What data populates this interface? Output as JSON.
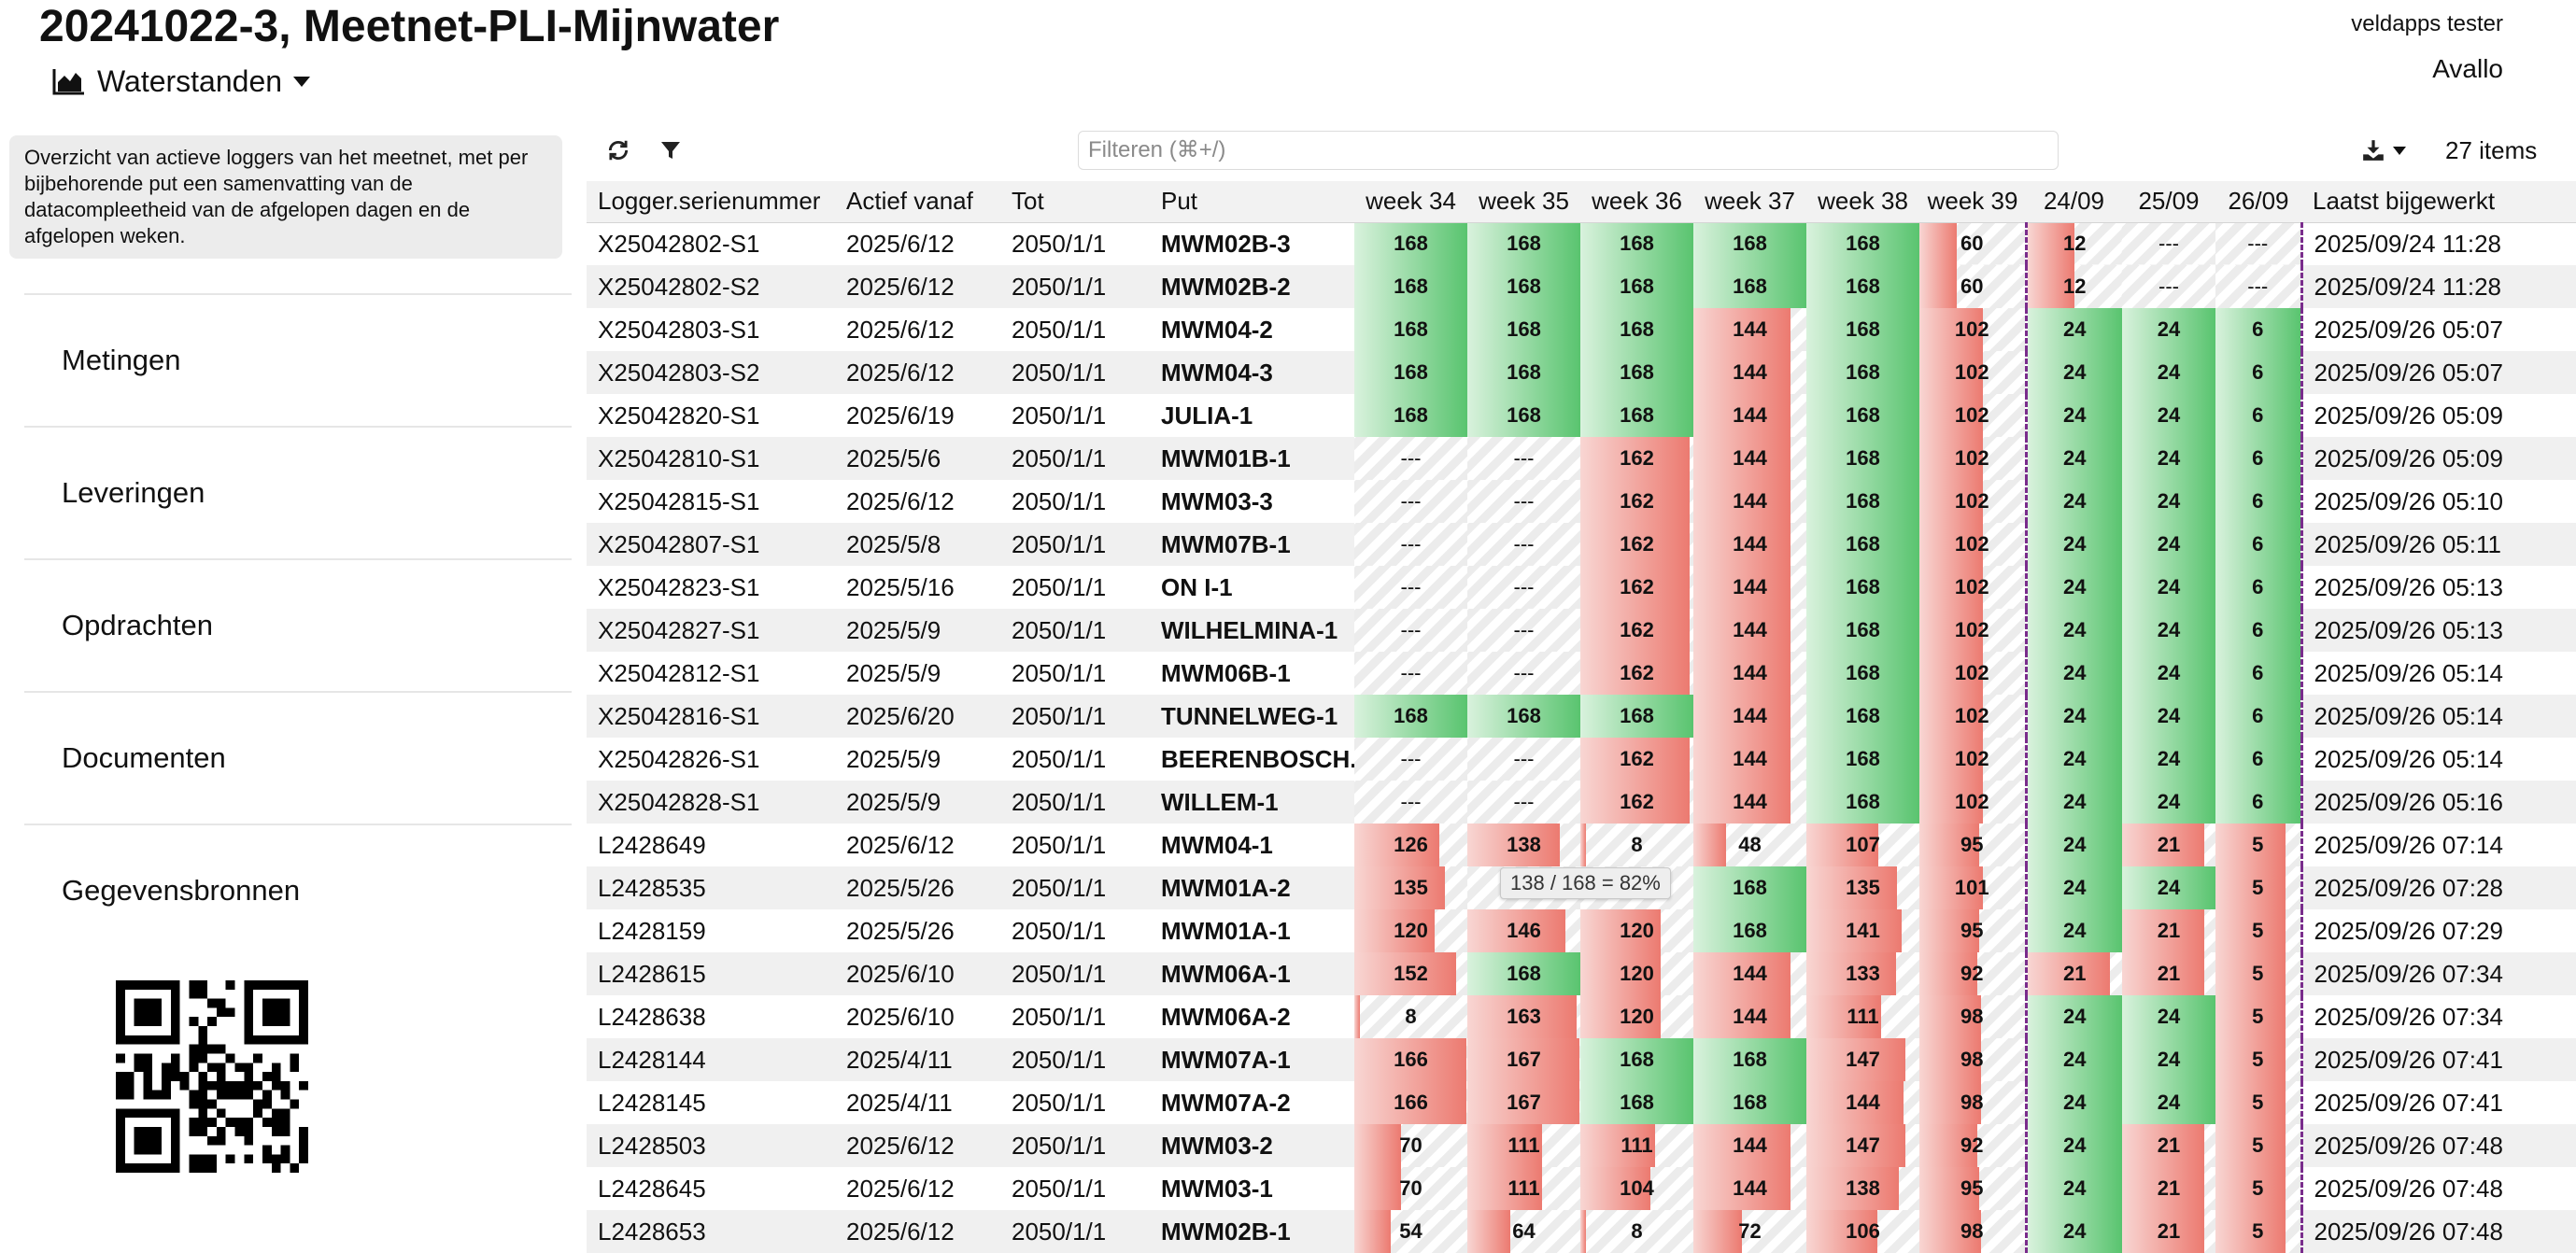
{
  "header": {
    "title": "20241022-3, Meetnet-PLI-Mijnwater",
    "view_selector": "Waterstanden",
    "user": "veldapps tester",
    "org": "Avallo"
  },
  "sidebar": {
    "intro": "Overzicht van actieve loggers van het meetnet, met per bijbehorende put een samenvatting van de datacompleetheid van de afgelopen dagen en de afgelopen weken.",
    "items": [
      "Metingen",
      "Leveringen",
      "Opdrachten",
      "Documenten",
      "Gegevensbronnen"
    ],
    "qr_icon": "qr-code-icon"
  },
  "toolbar": {
    "refresh_icon": "refresh-icon",
    "filter_icon": "filter-icon",
    "filter_placeholder": "Filteren (⌘+/)",
    "download_icon": "download-icon",
    "item_count": "27 items"
  },
  "colors": {
    "complete": "#59c46f",
    "incomplete": "#ec7a70",
    "separator": "#7a2d8c"
  },
  "table": {
    "columns": [
      "Logger.serienummer",
      "Actief vanaf",
      "Tot",
      "Put",
      "week 34",
      "week 35",
      "week 36",
      "week 37",
      "week 38",
      "week 39",
      "24/09",
      "25/09",
      "26/09",
      "Laatst bijgewerkt"
    ],
    "rows": [
      {
        "logger": "X25042802-S1",
        "from": "2025/6/12",
        "to": "2050/1/1",
        "put": "MWM02B-3",
        "weeks": [
          "168",
          "168",
          "168",
          "168",
          "168",
          "60"
        ],
        "days": [
          "12",
          "---",
          "---"
        ],
        "updated": "2025/09/24 11:28"
      },
      {
        "logger": "X25042802-S2",
        "from": "2025/6/12",
        "to": "2050/1/1",
        "put": "MWM02B-2",
        "weeks": [
          "168",
          "168",
          "168",
          "168",
          "168",
          "60"
        ],
        "days": [
          "12",
          "---",
          "---"
        ],
        "updated": "2025/09/24 11:28"
      },
      {
        "logger": "X25042803-S1",
        "from": "2025/6/12",
        "to": "2050/1/1",
        "put": "MWM04-2",
        "weeks": [
          "168",
          "168",
          "168",
          "144",
          "168",
          "102"
        ],
        "days": [
          "24",
          "24",
          "6"
        ],
        "updated": "2025/09/26 05:07"
      },
      {
        "logger": "X25042803-S2",
        "from": "2025/6/12",
        "to": "2050/1/1",
        "put": "MWM04-3",
        "weeks": [
          "168",
          "168",
          "168",
          "144",
          "168",
          "102"
        ],
        "days": [
          "24",
          "24",
          "6"
        ],
        "updated": "2025/09/26 05:07"
      },
      {
        "logger": "X25042820-S1",
        "from": "2025/6/19",
        "to": "2050/1/1",
        "put": "JULIA-1",
        "weeks": [
          "168",
          "168",
          "168",
          "144",
          "168",
          "102"
        ],
        "days": [
          "24",
          "24",
          "6"
        ],
        "updated": "2025/09/26 05:09"
      },
      {
        "logger": "X25042810-S1",
        "from": "2025/5/6",
        "to": "2050/1/1",
        "put": "MWM01B-1",
        "weeks": [
          "---",
          "---",
          "162",
          "144",
          "168",
          "102"
        ],
        "days": [
          "24",
          "24",
          "6"
        ],
        "updated": "2025/09/26 05:09"
      },
      {
        "logger": "X25042815-S1",
        "from": "2025/6/12",
        "to": "2050/1/1",
        "put": "MWM03-3",
        "weeks": [
          "---",
          "---",
          "162",
          "144",
          "168",
          "102"
        ],
        "days": [
          "24",
          "24",
          "6"
        ],
        "updated": "2025/09/26 05:10"
      },
      {
        "logger": "X25042807-S1",
        "from": "2025/5/8",
        "to": "2050/1/1",
        "put": "MWM07B-1",
        "weeks": [
          "---",
          "---",
          "162",
          "144",
          "168",
          "102"
        ],
        "days": [
          "24",
          "24",
          "6"
        ],
        "updated": "2025/09/26 05:11"
      },
      {
        "logger": "X25042823-S1",
        "from": "2025/5/16",
        "to": "2050/1/1",
        "put": "ON I-1",
        "weeks": [
          "---",
          "---",
          "162",
          "144",
          "168",
          "102"
        ],
        "days": [
          "24",
          "24",
          "6"
        ],
        "updated": "2025/09/26 05:13"
      },
      {
        "logger": "X25042827-S1",
        "from": "2025/5/9",
        "to": "2050/1/1",
        "put": "WILHELMINA-1",
        "weeks": [
          "---",
          "---",
          "162",
          "144",
          "168",
          "102"
        ],
        "days": [
          "24",
          "24",
          "6"
        ],
        "updated": "2025/09/26 05:13"
      },
      {
        "logger": "X25042812-S1",
        "from": "2025/5/9",
        "to": "2050/1/1",
        "put": "MWM06B-1",
        "weeks": [
          "---",
          "---",
          "162",
          "144",
          "168",
          "102"
        ],
        "days": [
          "24",
          "24",
          "6"
        ],
        "updated": "2025/09/26 05:14"
      },
      {
        "logger": "X25042816-S1",
        "from": "2025/6/20",
        "to": "2050/1/1",
        "put": "TUNNELWEG-1",
        "weeks": [
          "168",
          "168",
          "168",
          "144",
          "168",
          "102"
        ],
        "days": [
          "24",
          "24",
          "6"
        ],
        "updated": "2025/09/26 05:14"
      },
      {
        "logger": "X25042826-S1",
        "from": "2025/5/9",
        "to": "2050/1/1",
        "put": "BEERENBOSCH...",
        "weeks": [
          "---",
          "---",
          "162",
          "144",
          "168",
          "102"
        ],
        "days": [
          "24",
          "24",
          "6"
        ],
        "updated": "2025/09/26 05:14"
      },
      {
        "logger": "X25042828-S1",
        "from": "2025/5/9",
        "to": "2050/1/1",
        "put": "WILLEM-1",
        "weeks": [
          "---",
          "---",
          "162",
          "144",
          "168",
          "102"
        ],
        "days": [
          "24",
          "24",
          "6"
        ],
        "updated": "2025/09/26 05:16"
      },
      {
        "logger": "L2428649",
        "from": "2025/6/12",
        "to": "2050/1/1",
        "put": "MWM04-1",
        "weeks": [
          "126",
          "138",
          "8",
          "48",
          "107",
          "95"
        ],
        "days": [
          "24",
          "21",
          "5"
        ],
        "updated": "2025/09/26 07:14"
      },
      {
        "logger": "L2428535",
        "from": "2025/5/26",
        "to": "2050/1/1",
        "put": "MWM01A-2",
        "weeks": [
          "135",
          "",
          "",
          "168",
          "135",
          "101"
        ],
        "days": [
          "24",
          "24",
          "5"
        ],
        "updated": "2025/09/26 07:28"
      },
      {
        "logger": "L2428159",
        "from": "2025/5/26",
        "to": "2050/1/1",
        "put": "MWM01A-1",
        "weeks": [
          "120",
          "146",
          "120",
          "168",
          "141",
          "95"
        ],
        "days": [
          "24",
          "21",
          "5"
        ],
        "updated": "2025/09/26 07:29"
      },
      {
        "logger": "L2428615",
        "from": "2025/6/10",
        "to": "2050/1/1",
        "put": "MWM06A-1",
        "weeks": [
          "152",
          "168",
          "120",
          "144",
          "133",
          "92"
        ],
        "days": [
          "21",
          "21",
          "5"
        ],
        "updated": "2025/09/26 07:34"
      },
      {
        "logger": "L2428638",
        "from": "2025/6/10",
        "to": "2050/1/1",
        "put": "MWM06A-2",
        "weeks": [
          "8",
          "163",
          "120",
          "144",
          "111",
          "98"
        ],
        "days": [
          "24",
          "24",
          "5"
        ],
        "updated": "2025/09/26 07:34"
      },
      {
        "logger": "L2428144",
        "from": "2025/4/11",
        "to": "2050/1/1",
        "put": "MWM07A-1",
        "weeks": [
          "166",
          "167",
          "168",
          "168",
          "147",
          "98"
        ],
        "days": [
          "24",
          "24",
          "5"
        ],
        "updated": "2025/09/26 07:41"
      },
      {
        "logger": "L2428145",
        "from": "2025/4/11",
        "to": "2050/1/1",
        "put": "MWM07A-2",
        "weeks": [
          "166",
          "167",
          "168",
          "168",
          "144",
          "98"
        ],
        "days": [
          "24",
          "24",
          "5"
        ],
        "updated": "2025/09/26 07:41"
      },
      {
        "logger": "L2428503",
        "from": "2025/6/12",
        "to": "2050/1/1",
        "put": "MWM03-2",
        "weeks": [
          "70",
          "111",
          "111",
          "144",
          "147",
          "92"
        ],
        "days": [
          "24",
          "21",
          "5"
        ],
        "updated": "2025/09/26 07:48"
      },
      {
        "logger": "L2428645",
        "from": "2025/6/12",
        "to": "2050/1/1",
        "put": "MWM03-1",
        "weeks": [
          "70",
          "111",
          "104",
          "144",
          "138",
          "95"
        ],
        "days": [
          "24",
          "21",
          "5"
        ],
        "updated": "2025/09/26 07:48"
      },
      {
        "logger": "L2428653",
        "from": "2025/6/12",
        "to": "2050/1/1",
        "put": "MWM02B-1",
        "weeks": [
          "54",
          "64",
          "8",
          "72",
          "106",
          "98"
        ],
        "days": [
          "24",
          "21",
          "5"
        ],
        "updated": "2025/09/26 07:48"
      }
    ],
    "week_total": 168,
    "day_total": 24,
    "current_day_total": 6
  },
  "tooltip": "138 / 168 = 82%"
}
